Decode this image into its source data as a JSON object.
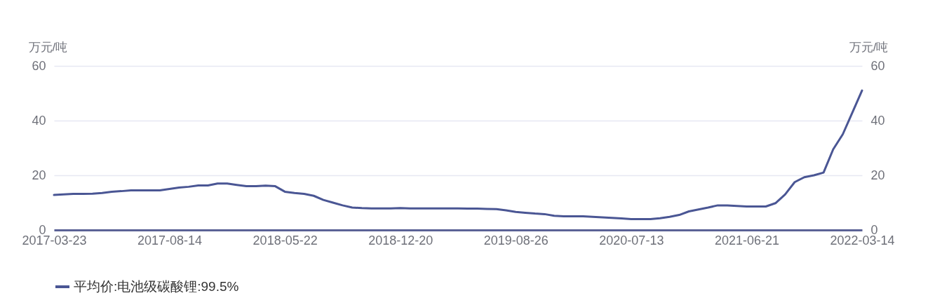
{
  "chart_data": {
    "type": "line",
    "ylabel": "万元/吨",
    "y2label": "万元/吨",
    "categories": [
      "2017-03-23",
      null,
      null,
      null,
      null,
      null,
      null,
      null,
      null,
      null,
      null,
      null,
      "2017-08-14",
      null,
      null,
      null,
      null,
      null,
      null,
      null,
      null,
      null,
      null,
      null,
      "2018-05-22",
      null,
      null,
      null,
      null,
      null,
      null,
      null,
      null,
      null,
      null,
      null,
      "2018-12-20",
      null,
      null,
      null,
      null,
      null,
      null,
      null,
      null,
      null,
      null,
      null,
      "2019-08-26",
      null,
      null,
      null,
      null,
      null,
      null,
      null,
      null,
      null,
      null,
      null,
      "2020-07-13",
      null,
      null,
      null,
      null,
      null,
      null,
      null,
      null,
      null,
      null,
      null,
      "2021-06-21",
      null,
      null,
      null,
      null,
      null,
      null,
      null,
      null,
      null,
      null,
      null,
      "2022-03-14"
    ],
    "series": [
      {
        "name": "平均价:电池级碳酸锂:99.5%",
        "color": "#4a5694",
        "values": [
          12.8,
          13.0,
          13.2,
          13.2,
          13.3,
          13.5,
          14.0,
          14.2,
          14.5,
          14.5,
          14.5,
          14.5,
          15.0,
          15.5,
          15.8,
          16.3,
          16.3,
          17.0,
          17.0,
          16.5,
          16.0,
          16.0,
          16.2,
          16.0,
          14.0,
          13.5,
          13.2,
          12.5,
          11.0,
          10.0,
          9.0,
          8.2,
          8.0,
          7.9,
          7.9,
          7.9,
          8.0,
          7.9,
          7.9,
          7.9,
          7.9,
          7.9,
          7.9,
          7.8,
          7.8,
          7.7,
          7.6,
          7.2,
          6.6,
          6.3,
          6.0,
          5.8,
          5.2,
          5.0,
          5.0,
          5.0,
          4.8,
          4.6,
          4.4,
          4.2,
          4.0,
          4.0,
          4.0,
          4.3,
          4.8,
          5.5,
          6.8,
          7.5,
          8.2,
          9.0,
          9.0,
          8.8,
          8.6,
          8.6,
          8.6,
          9.8,
          13.0,
          17.5,
          19.3,
          20.0,
          21.0,
          29.5,
          35.0,
          43.0,
          51.0
        ]
      }
    ],
    "ylim": [
      0,
      60
    ],
    "yticks": [
      0,
      20,
      40,
      60
    ],
    "y2lim": [
      0,
      60
    ],
    "y2ticks": [
      0,
      20,
      40,
      60
    ],
    "grid": "y",
    "legend": "bottom"
  }
}
